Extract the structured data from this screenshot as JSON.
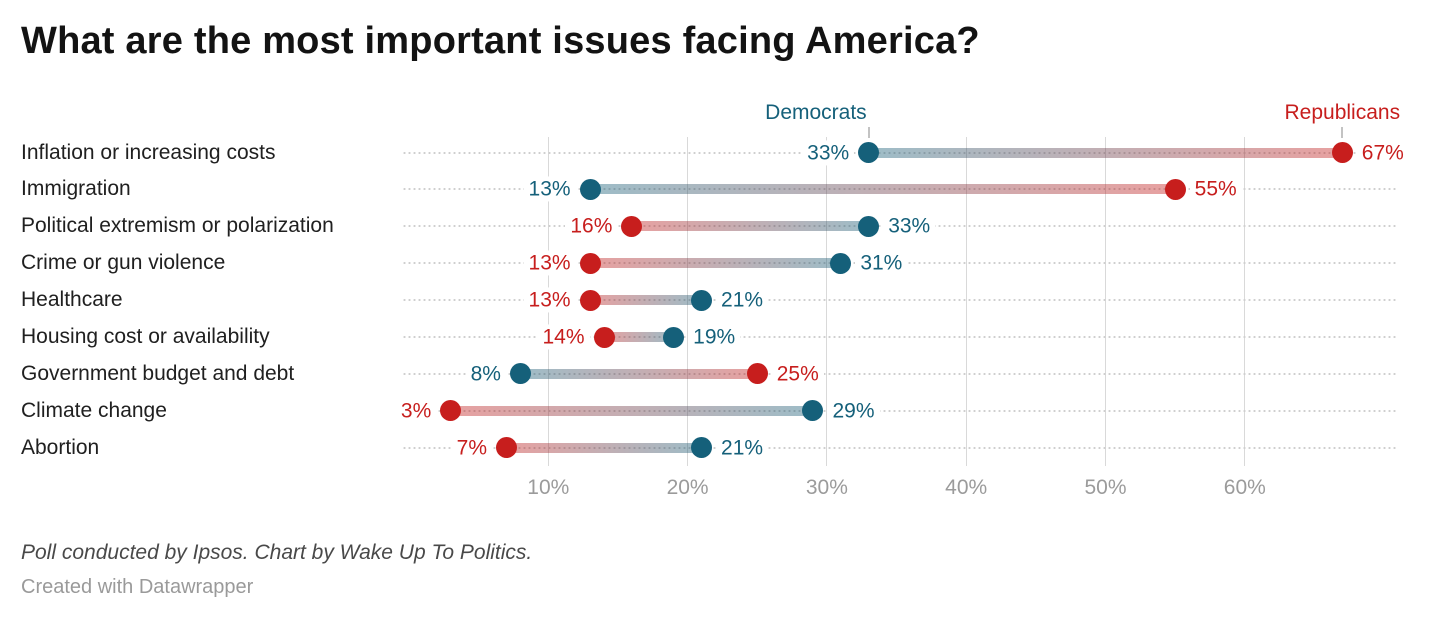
{
  "title": "What are the most important issues facing America?",
  "legend": {
    "democrats": "Democrats",
    "republicans": "Republicans"
  },
  "colors": {
    "democrat": "#15607a",
    "republican": "#c71e1d",
    "title_text": "#131313",
    "category_text": "#202020",
    "gridline": "#d9d9d9",
    "axis_tick_text": "#9b9b9b",
    "leader_dots": "#cfcfcf",
    "legend_tick": "#c3c3c3",
    "source_text": "#494949",
    "credit_text": "#9a9a9a"
  },
  "chart_data": {
    "type": "dumbbell",
    "title": "What are the most important issues facing America?",
    "categories": [
      "Inflation or increasing costs",
      "Immigration",
      "Political extremism or polarization",
      "Crime or gun violence",
      "Healthcare",
      "Housing cost or availability",
      "Government budget and debt",
      "Climate change",
      "Abortion"
    ],
    "series": [
      {
        "name": "Democrats",
        "values": [
          33,
          13,
          33,
          31,
          21,
          19,
          8,
          29,
          21
        ]
      },
      {
        "name": "Republicans",
        "values": [
          67,
          55,
          16,
          13,
          13,
          14,
          25,
          3,
          7
        ]
      }
    ],
    "value_suffix": "%",
    "axis": {
      "tick_values": [
        10,
        20,
        30,
        40,
        50,
        60
      ],
      "tick_labels": [
        "10%",
        "20%",
        "30%",
        "40%",
        "50%",
        "60%"
      ],
      "xmin": 0,
      "xmax": 72.5
    },
    "grid": "vertical gridlines on, horizontal dotted row guides",
    "legend_position": "top, anchored above first-row dots",
    "xlabel": "",
    "ylabel": ""
  },
  "footer": {
    "source": "Poll conducted by Ipsos. Chart by Wake Up To Politics.",
    "credit": "Created with Datawrapper"
  }
}
